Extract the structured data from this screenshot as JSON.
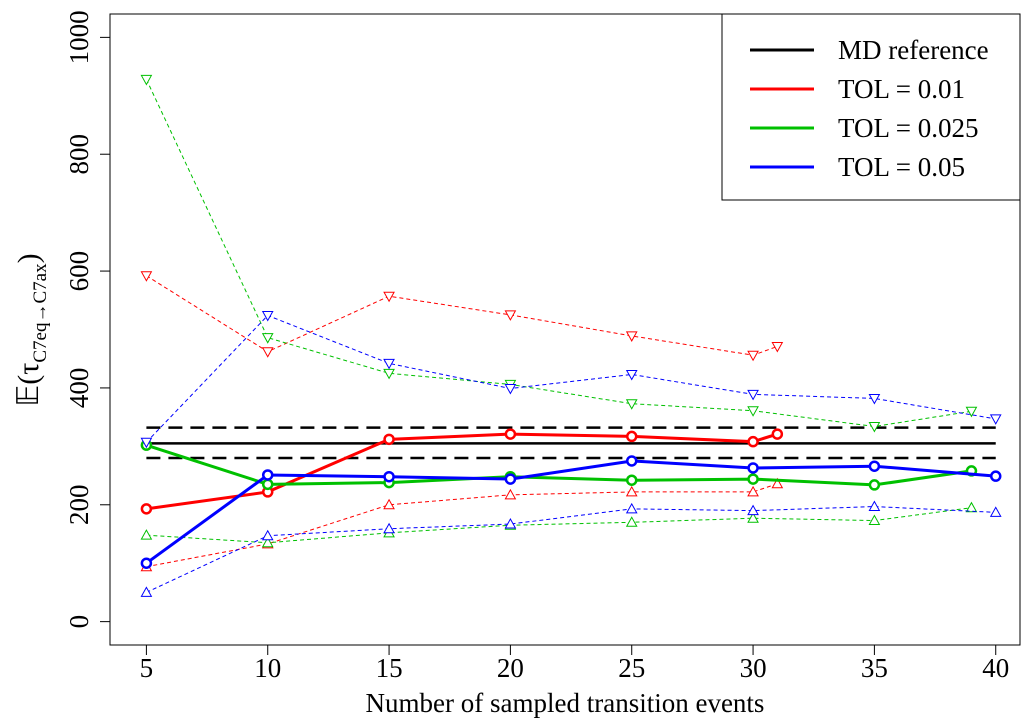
{
  "chart_data": {
    "type": "line",
    "xlabel": "Number of sampled transition events",
    "ylabel": {
      "main": "𝔼(τ",
      "sub": "C7eq→C7ax",
      "close": ")"
    },
    "xlim": [
      3.5,
      41
    ],
    "ylim": [
      -40,
      1040
    ],
    "xticks": [
      5,
      10,
      15,
      20,
      25,
      30,
      35,
      40
    ],
    "yticks": [
      0,
      200,
      400,
      600,
      800,
      1000
    ],
    "legend": "top-right",
    "reference": {
      "name": "MD reference",
      "color": "#000000",
      "x": [
        5,
        40
      ],
      "value": 305,
      "lower": 280,
      "upper": 332
    },
    "series": [
      {
        "name": "TOL = 0.01",
        "color": "#ff0000",
        "x": [
          5,
          10,
          15,
          20,
          25,
          30,
          31
        ],
        "mean": [
          193,
          222,
          312,
          321,
          317,
          308,
          321
        ],
        "upper": [
          592,
          462,
          557,
          525,
          489,
          456,
          471
        ],
        "lower": [
          94,
          133,
          200,
          217,
          222,
          222,
          236
        ]
      },
      {
        "name": "TOL = 0.025",
        "color": "#00c000",
        "x": [
          5,
          10,
          15,
          20,
          25,
          30,
          35,
          39
        ],
        "mean": [
          302,
          235,
          238,
          248,
          242,
          244,
          234,
          258
        ],
        "upper": [
          928,
          486,
          425,
          406,
          373,
          361,
          334,
          360
        ],
        "lower": [
          148,
          135,
          152,
          165,
          170,
          177,
          173,
          195
        ]
      },
      {
        "name": "TOL = 0.05",
        "color": "#0000ff",
        "x": [
          5,
          10,
          15,
          20,
          25,
          30,
          35,
          40
        ],
        "mean": [
          100,
          251,
          248,
          244,
          275,
          263,
          266,
          249
        ],
        "upper": [
          307,
          524,
          442,
          399,
          423,
          389,
          382,
          347
        ],
        "lower": [
          50,
          147,
          159,
          167,
          193,
          190,
          197,
          187
        ]
      }
    ]
  }
}
